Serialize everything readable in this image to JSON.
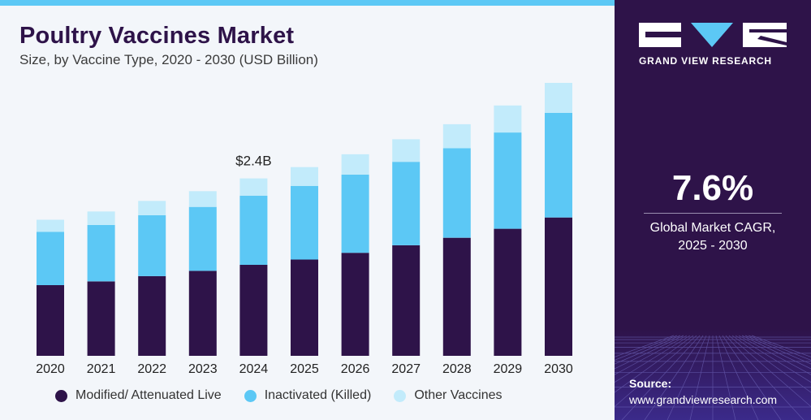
{
  "header": {
    "title": "Poultry Vaccines Market",
    "subtitle": "Size, by Vaccine Type, 2020 - 2030 (USD Billion)"
  },
  "chart_data": {
    "type": "bar",
    "stacked": true,
    "title": "Poultry Vaccines Market",
    "subtitle": "Size, by Vaccine Type, 2020 - 2030 (USD Billion)",
    "categories": [
      "2020",
      "2021",
      "2022",
      "2023",
      "2024",
      "2025",
      "2026",
      "2027",
      "2028",
      "2029",
      "2030"
    ],
    "series": [
      {
        "name": "Modified/ Attenuated Live",
        "color": "#2e1349",
        "values": [
          0.94,
          0.99,
          1.06,
          1.13,
          1.21,
          1.28,
          1.37,
          1.47,
          1.57,
          1.69,
          1.84
        ]
      },
      {
        "name": "Inactivated (Killed)",
        "color": "#5cc8f5",
        "values": [
          0.71,
          0.75,
          0.81,
          0.85,
          0.92,
          0.98,
          1.04,
          1.11,
          1.19,
          1.28,
          1.39
        ]
      },
      {
        "name": "Other Vaccines",
        "color": "#c2ebfb",
        "values": [
          0.16,
          0.18,
          0.19,
          0.21,
          0.23,
          0.25,
          0.27,
          0.3,
          0.32,
          0.36,
          0.4
        ]
      }
    ],
    "annotations": [
      {
        "category": "2024",
        "text": "$2.4B"
      }
    ],
    "ylim": [
      0,
      3.63
    ],
    "grid": false,
    "legend": "bottom"
  },
  "side_panel": {
    "brand": "GRAND VIEW RESEARCH",
    "cagr_value": "7.6%",
    "cagr_label_line1": "Global Market CAGR,",
    "cagr_label_line2": "2025 - 2030",
    "source_label": "Source:",
    "source_url": "www.grandviewresearch.com"
  }
}
